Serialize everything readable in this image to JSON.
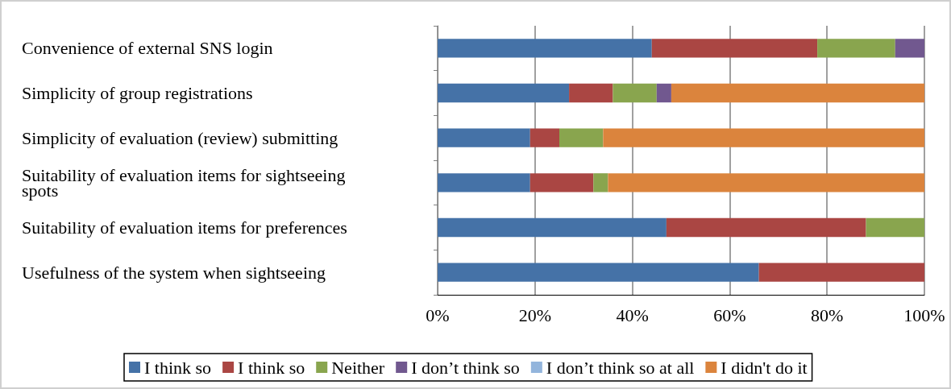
{
  "chart_data": {
    "type": "bar",
    "orientation": "horizontal",
    "stacked": true,
    "categories": [
      "Convenience of external SNS login",
      "Simplicity of group registrations",
      "Simplicity of evaluation (review) submitting",
      "Suitability of evaluation items for sightseeing spots",
      "Suitability of evaluation items for preferences",
      "Usefulness of the system when sightseeing"
    ],
    "series": [
      {
        "name": "I think so",
        "color": "#4572a7",
        "values": [
          44,
          27,
          19,
          19,
          47,
          66
        ]
      },
      {
        "name": "I think so",
        "color": "#aa4643",
        "values": [
          34,
          9,
          6,
          13,
          41,
          34
        ]
      },
      {
        "name": "Neither",
        "color": "#89a54e",
        "values": [
          16,
          9,
          9,
          3,
          12,
          0
        ]
      },
      {
        "name": "I don’t think so",
        "color": "#71588f",
        "values": [
          6,
          3,
          0,
          0,
          0,
          0
        ]
      },
      {
        "name": "I don’t think so at all",
        "color": "#93b5dc",
        "values": [
          0,
          0,
          0,
          0,
          0,
          0
        ]
      },
      {
        "name": "I didn't do it",
        "color": "#db843d",
        "values": [
          0,
          52,
          66,
          65,
          0,
          0
        ]
      }
    ],
    "xlim": [
      0,
      100
    ],
    "xticks": [
      {
        "value": 0,
        "label": "0%"
      },
      {
        "value": 20,
        "label": "20%"
      },
      {
        "value": 40,
        "label": "40%"
      },
      {
        "value": 60,
        "label": "60%"
      },
      {
        "value": 80,
        "label": "80%"
      },
      {
        "value": 100,
        "label": "100%"
      }
    ],
    "grid": "x",
    "legend": "bottom"
  }
}
